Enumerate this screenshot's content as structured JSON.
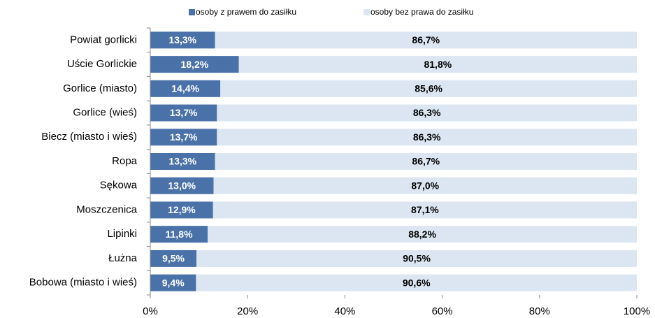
{
  "chart_data": {
    "type": "bar",
    "orientation": "horizontal",
    "stacked": true,
    "categories": [
      "Powiat gorlicki",
      "Uście Gorlickie",
      "Gorlice (miasto)",
      "Gorlice (wieś)",
      "Biecz (miasto  i wieś)",
      "Ropa",
      "Sękowa",
      "Moszczenica",
      "Lipinki",
      "Łużna",
      "Bobowa (miasto  i wieś)"
    ],
    "series": [
      {
        "name": "osoby z prawem do zasiłku",
        "color": "#4a72a8",
        "label_color": "#ffffff",
        "values": [
          13.3,
          18.2,
          14.4,
          13.7,
          13.7,
          13.3,
          13.0,
          12.9,
          11.8,
          9.5,
          9.4
        ],
        "value_labels": [
          "13,3%",
          "18,2%",
          "14,4%",
          "13,7%",
          "13,7%",
          "13,3%",
          "13,0%",
          "12,9%",
          "11,8%",
          "9,5%",
          "9,4%"
        ]
      },
      {
        "name": "osoby bez prawa  do zasiłku",
        "color": "#dce6f2",
        "label_color": "#000000",
        "values": [
          86.7,
          81.8,
          85.6,
          86.3,
          86.3,
          86.7,
          87.0,
          87.1,
          88.2,
          90.5,
          90.6
        ],
        "value_labels": [
          "86,7%",
          "81,8%",
          "85,6%",
          "86,3%",
          "86,3%",
          "86,7%",
          "87,0%",
          "87,1%",
          "88,2%",
          "90,5%",
          "90,6%"
        ]
      }
    ],
    "xlim": [
      0,
      100
    ],
    "xticks": [
      {
        "value": 0,
        "label": "0%"
      },
      {
        "value": 20,
        "label": "20%"
      },
      {
        "value": 40,
        "label": "40%"
      },
      {
        "value": 60,
        "label": "60%"
      },
      {
        "value": 80,
        "label": "80%"
      },
      {
        "value": 100,
        "label": "100%"
      }
    ],
    "legend": "top"
  }
}
